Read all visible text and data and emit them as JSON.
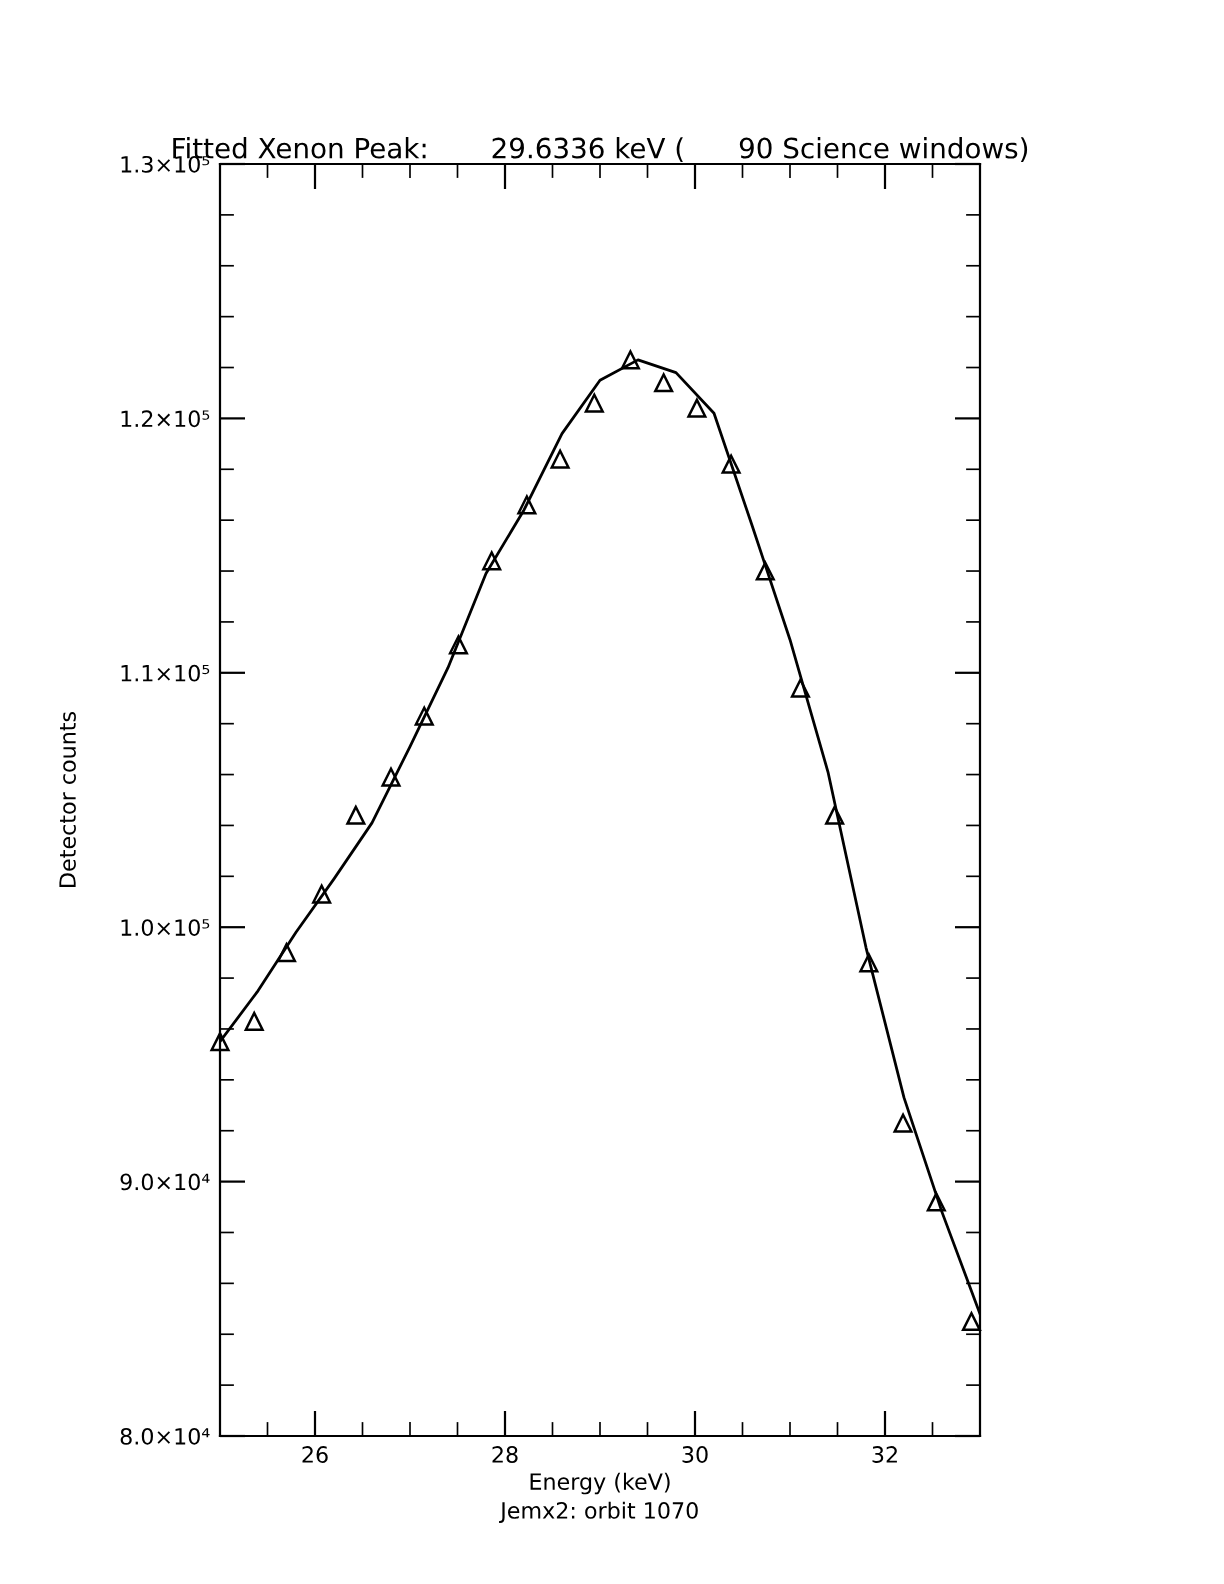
{
  "chart_data": {
    "type": "scatter",
    "title": "Fitted Xenon Peak:       29.6336 keV (      90 Science windows)",
    "xlabel": "Energy (keV)",
    "subtitle": "Jemx2: orbit 1070",
    "ylabel": "Detector counts",
    "xlim": [
      25,
      33
    ],
    "xticks": [
      26,
      28,
      30,
      32
    ],
    "ylim": [
      80000,
      130000
    ],
    "yticks": [
      {
        "value": 80000,
        "label": "8.0×10⁴"
      },
      {
        "value": 90000,
        "label": "9.0×10⁴"
      },
      {
        "value": 100000,
        "label": "1.0×10⁵"
      },
      {
        "value": 110000,
        "label": "1.1×10⁵"
      },
      {
        "value": 120000,
        "label": "1.2×10⁵"
      },
      {
        "value": 130000,
        "label": "1.3×10⁵"
      }
    ],
    "grid": false,
    "legend": false,
    "series": [
      {
        "marker": "triangle",
        "color": "#000000",
        "x": [
          25.0,
          25.36,
          25.7,
          26.07,
          26.43,
          26.8,
          27.15,
          27.51,
          27.86,
          28.23,
          28.58,
          28.94,
          29.32,
          29.67,
          30.02,
          30.38,
          30.74,
          31.11,
          31.47,
          31.83,
          32.19,
          32.54,
          32.91
        ],
        "values": [
          95500,
          96300,
          99000,
          101300,
          104400,
          105900,
          108300,
          111100,
          114400,
          116600,
          118400,
          120600,
          122300,
          121400,
          120400,
          118200,
          114000,
          109400,
          104400,
          98600,
          92300,
          89200,
          84500
        ]
      },
      {
        "type": "line",
        "marker": "none",
        "line_style": "solid",
        "color": "#000000",
        "x": [
          25.0,
          25.4,
          25.8,
          26.2,
          26.6,
          27.0,
          27.4,
          27.8,
          28.2,
          28.6,
          29.0,
          29.4,
          29.8,
          30.2,
          30.6,
          31.0,
          31.4,
          31.8,
          32.2,
          32.6,
          33.0
        ],
        "values": [
          95500,
          97500,
          99800,
          101900,
          104100,
          107100,
          110200,
          113900,
          116400,
          119400,
          121500,
          122300,
          121800,
          120200,
          115800,
          111300,
          106100,
          99200,
          93300,
          88800,
          84800
        ]
      }
    ]
  }
}
